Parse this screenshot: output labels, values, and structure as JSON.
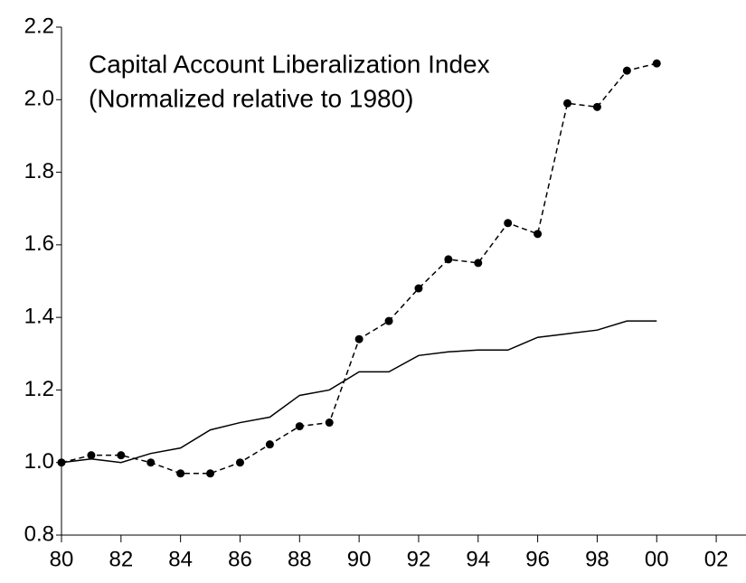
{
  "chart_data": {
    "type": "line",
    "annotation": [
      "Capital Account Liberalization Index",
      "(Normalized relative to 1980)"
    ],
    "x": [
      1980,
      1981,
      1982,
      1983,
      1984,
      1985,
      1986,
      1987,
      1988,
      1989,
      1990,
      1991,
      1992,
      1993,
      1994,
      1995,
      1996,
      1997,
      1998,
      1999,
      2000
    ],
    "series": [
      {
        "color": "#000000",
        "style": "solid",
        "markers": false,
        "values": [
          1.0,
          1.01,
          1.0,
          1.025,
          1.04,
          1.09,
          1.11,
          1.125,
          1.185,
          1.2,
          1.25,
          1.25,
          1.295,
          1.305,
          1.31,
          1.31,
          1.345,
          1.355,
          1.365,
          1.39,
          1.39
        ]
      },
      {
        "color": "#000000",
        "style": "dashed",
        "markers": true,
        "values": [
          1.0,
          1.02,
          1.02,
          1.0,
          0.97,
          0.97,
          1.0,
          1.05,
          1.1,
          1.11,
          1.34,
          1.39,
          1.48,
          1.56,
          1.55,
          1.66,
          1.63,
          1.99,
          1.98,
          2.08,
          2.1
        ]
      }
    ],
    "xlim": [
      1980,
      2003
    ],
    "xticks": [
      {
        "value": 1980,
        "label": "80"
      },
      {
        "value": 1982,
        "label": "82"
      },
      {
        "value": 1984,
        "label": "84"
      },
      {
        "value": 1986,
        "label": "86"
      },
      {
        "value": 1988,
        "label": "88"
      },
      {
        "value": 1990,
        "label": "90"
      },
      {
        "value": 1992,
        "label": "92"
      },
      {
        "value": 1994,
        "label": "94"
      },
      {
        "value": 1996,
        "label": "96"
      },
      {
        "value": 1998,
        "label": "98"
      },
      {
        "value": 2000,
        "label": "00"
      },
      {
        "value": 2002,
        "label": "02"
      }
    ],
    "ylim": [
      0.8,
      2.2
    ],
    "yticks": [
      0.8,
      {
        "value": 1,
        "label": "1.0"
      },
      1.2,
      1.4,
      1.6,
      1.8,
      {
        "value": 2,
        "label": "2.0"
      },
      2.2
    ],
    "grid": false
  }
}
